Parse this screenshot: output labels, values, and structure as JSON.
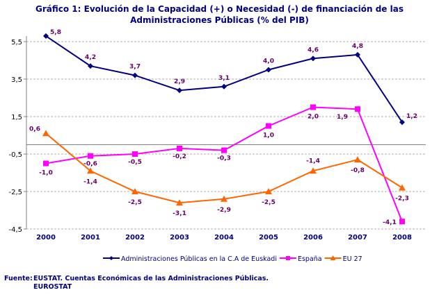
{
  "chart_data": {
    "type": "line",
    "title": "Gráfico 1: Evolución de la Capacidad (+) o Necesidad (-) de financiación de las Administraciones Públicas (% del PIB)",
    "categories": [
      "2000",
      "2001",
      "2002",
      "2003",
      "2004",
      "2005",
      "2006",
      "2007",
      "2008"
    ],
    "ylim": [
      -4.5,
      5.5
    ],
    "yticks": [
      "5,5",
      "3,5",
      "1,5",
      "-0,5",
      "-2,5",
      "-4,5"
    ],
    "ytick_values": [
      5.5,
      3.5,
      1.5,
      -0.5,
      -2.5,
      -4.5
    ],
    "grid": true,
    "legend": "bottom",
    "series": [
      {
        "name": "Administraciones Públicas en la C.A de Euskadi",
        "color": "#000080",
        "marker": "diamond",
        "values": [
          5.8,
          4.2,
          3.7,
          2.9,
          3.1,
          4.0,
          4.6,
          4.8,
          1.2
        ],
        "labels": [
          "5,8",
          "4,2",
          "3,7",
          "2,9",
          "3,1",
          "4,0",
          "4,6",
          "4,8",
          "1,2"
        ]
      },
      {
        "name": "España",
        "color": "#ff00ff",
        "marker": "square",
        "values": [
          -1.0,
          -0.6,
          -0.5,
          -0.2,
          -0.3,
          1.0,
          2.0,
          1.9,
          -4.1
        ],
        "labels": [
          "-1,0",
          "-0,6",
          "-0,5",
          "-0,2",
          "-0,3",
          "1,0",
          "2,0",
          "1,9",
          "-4,1"
        ]
      },
      {
        "name": "EU 27",
        "color": "#ff6600",
        "marker": "triangle",
        "values": [
          0.6,
          -1.4,
          -2.5,
          -3.1,
          -2.9,
          -2.5,
          -1.4,
          -0.8,
          -2.3
        ],
        "labels": [
          "0,6",
          "-1,4",
          "-2,5",
          "-3,1",
          "-2,9",
          "-2,5",
          "-1,4",
          "-0,8",
          "-2,3"
        ]
      }
    ],
    "label_color": "#660066"
  },
  "source": {
    "label": "Fuente:",
    "text": "EUSTAT. Cuentas Económicas de las Administraciones Públicas.",
    "text2": "EUROSTAT"
  }
}
